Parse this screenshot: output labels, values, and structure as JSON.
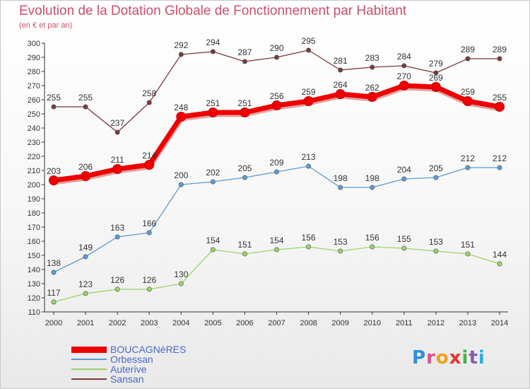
{
  "title": "Evolution de la Dotation Globale de Fonctionnement par Habitant",
  "subtitle": "(en € et par an)",
  "logo": {
    "letters": [
      {
        "ch": "P",
        "color": "#2f8fd8"
      },
      {
        "ch": "r",
        "color": "#e94b8a"
      },
      {
        "ch": "o",
        "color": "#f2a21a"
      },
      {
        "ch": "x",
        "color": "#e8332f"
      },
      {
        "ch": "i",
        "color": "#4db04a"
      },
      {
        "ch": "t",
        "color": "#8a5bb0"
      },
      {
        "ch": "i",
        "color": "#2fb0d8"
      }
    ]
  },
  "chart_data": {
    "type": "line",
    "title": "Evolution de la Dotation Globale de Fonctionnement par Habitant",
    "subtitle": "(en € et par an)",
    "x": [
      "2000",
      "2001",
      "2002",
      "2003",
      "2004",
      "2005",
      "2006",
      "2007",
      "2008",
      "2009",
      "2010",
      "2011",
      "2012",
      "2013",
      "2014"
    ],
    "ylim": [
      110,
      300
    ],
    "yticks": [
      110,
      120,
      130,
      140,
      150,
      160,
      170,
      180,
      190,
      200,
      210,
      220,
      230,
      240,
      250,
      260,
      270,
      280,
      290,
      300
    ],
    "grid": false,
    "legend_position": "bottom-left",
    "series": [
      {
        "name": "BOUCAGNèRES",
        "color": "#ee0000",
        "style": "bold",
        "values": [
          203,
          206,
          211,
          214,
          248,
          251,
          251,
          256,
          259,
          264,
          262,
          270,
          269,
          259,
          255
        ]
      },
      {
        "name": "Orbessan",
        "color": "#5b9bd5",
        "style": "thin",
        "values": [
          138,
          149,
          163,
          166,
          200,
          202,
          205,
          209,
          213,
          198,
          198,
          204,
          205,
          212,
          212
        ]
      },
      {
        "name": "Auterive",
        "color": "#9bd36a",
        "style": "thin",
        "values": [
          117,
          123,
          126,
          126,
          130,
          154,
          151,
          154,
          156,
          153,
          156,
          155,
          153,
          151,
          144
        ]
      },
      {
        "name": "Sansan",
        "color": "#7a3a3a",
        "style": "thin",
        "values": [
          255,
          255,
          237,
          258,
          292,
          294,
          287,
          290,
          295,
          281,
          283,
          284,
          279,
          289,
          289
        ]
      }
    ]
  }
}
